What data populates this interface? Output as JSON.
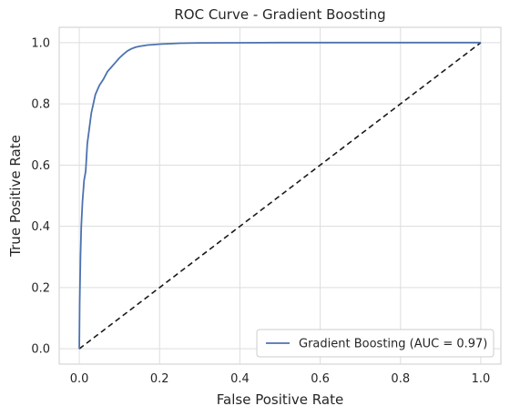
{
  "chart_data": {
    "type": "line",
    "title": "ROC Curve - Gradient Boosting",
    "xlabel": "False Positive Rate",
    "ylabel": "True Positive Rate",
    "xlim": [
      -0.05,
      1.05
    ],
    "ylim": [
      -0.05,
      1.05
    ],
    "xticks": [
      "0.0",
      "0.2",
      "0.4",
      "0.6",
      "0.8",
      "1.0"
    ],
    "yticks": [
      "0.0",
      "0.2",
      "0.4",
      "0.6",
      "0.8",
      "1.0"
    ],
    "grid": true,
    "legend_position": "lower-right",
    "series": [
      {
        "name": "Gradient Boosting (AUC = 0.97)",
        "color": "#4c72b0",
        "style": "solid",
        "x": [
          0.0,
          0.001,
          0.003,
          0.005,
          0.008,
          0.012,
          0.016,
          0.02,
          0.025,
          0.03,
          0.035,
          0.04,
          0.05,
          0.06,
          0.07,
          0.08,
          0.09,
          0.1,
          0.11,
          0.12,
          0.13,
          0.14,
          0.15,
          0.17,
          0.2,
          0.25,
          0.3,
          0.4,
          0.5,
          0.6,
          0.7,
          0.8,
          0.9,
          1.0
        ],
        "y": [
          0.0,
          0.15,
          0.3,
          0.4,
          0.48,
          0.55,
          0.58,
          0.67,
          0.72,
          0.77,
          0.8,
          0.83,
          0.86,
          0.88,
          0.905,
          0.92,
          0.935,
          0.95,
          0.962,
          0.973,
          0.98,
          0.985,
          0.988,
          0.992,
          0.995,
          0.998,
          0.999,
          0.9995,
          1.0,
          1.0,
          1.0,
          1.0,
          1.0,
          1.0
        ]
      },
      {
        "name": "",
        "color": "#1a1a1a",
        "style": "dashed",
        "x": [
          0,
          1
        ],
        "y": [
          0,
          1
        ]
      }
    ]
  }
}
